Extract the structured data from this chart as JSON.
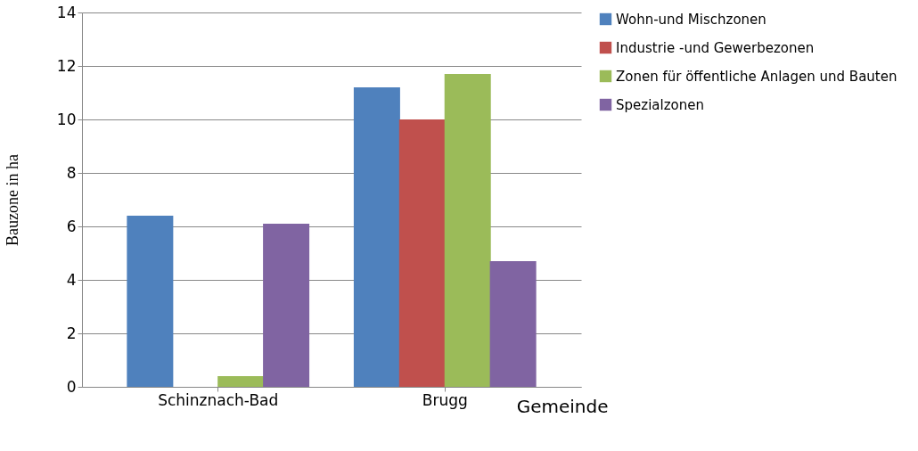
{
  "chart_data": {
    "type": "bar",
    "xlabel": "Gemeinde",
    "ylabel": "Bauzone in ha",
    "categories": [
      "Schinznach-Bad",
      "Brugg"
    ],
    "series": [
      {
        "name": "Wohn-und Mischzonen",
        "color": "#4f81bd",
        "values": [
          6.4,
          11.2
        ]
      },
      {
        "name": "Industrie -und Gewerbezonen",
        "color": "#c0504d",
        "values": [
          0,
          10.0
        ]
      },
      {
        "name": "Zonen für öffentliche Anlagen und Bauten",
        "color": "#9bbb59",
        "values": [
          0.4,
          11.7
        ]
      },
      {
        "name": "Spezialzonen",
        "color": "#8064a2",
        "values": [
          6.1,
          4.7
        ]
      }
    ],
    "ylim": [
      0,
      14
    ],
    "yticks": [
      0,
      2,
      4,
      6,
      8,
      10,
      12,
      14
    ],
    "grid": "y",
    "legend": "right"
  }
}
